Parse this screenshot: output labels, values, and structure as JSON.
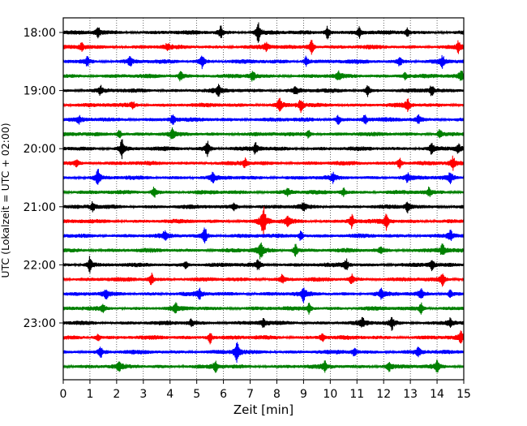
{
  "chart_data": {
    "type": "line",
    "title": "",
    "xlabel": "Zeit  [min]",
    "ylabel": "UTC (Lokalzeit = UTC + 02:00)",
    "xlim": [
      0,
      15
    ],
    "x_ticks": [
      "0",
      "1",
      "2",
      "3",
      "4",
      "5",
      "6",
      "7",
      "8",
      "9",
      "10",
      "11",
      "12",
      "13",
      "14",
      "15"
    ],
    "y_ticks": [
      "18:00",
      "19:00",
      "20:00",
      "21:00",
      "22:00",
      "23:00"
    ],
    "grid": "vertical dotted",
    "trace_colors": [
      "#000000",
      "#ff0000",
      "#0000ff",
      "#008000"
    ],
    "traces": [
      {
        "start": "18:00",
        "events": [
          [
            1.3,
            0.5
          ],
          [
            5.9,
            0.6
          ],
          [
            7.3,
            0.9
          ],
          [
            9.9,
            0.6
          ],
          [
            11.1,
            0.5
          ],
          [
            12.9,
            0.4
          ]
        ]
      },
      {
        "start": "18:15",
        "events": [
          [
            0.7,
            0.4
          ],
          [
            3.9,
            0.3
          ],
          [
            7.6,
            0.4
          ],
          [
            9.3,
            0.8
          ],
          [
            14.8,
            0.5
          ]
        ]
      },
      {
        "start": "18:30",
        "events": [
          [
            0.9,
            0.4
          ],
          [
            2.5,
            0.5
          ],
          [
            5.2,
            0.6
          ],
          [
            9.1,
            0.5
          ],
          [
            12.6,
            0.4
          ],
          [
            14.2,
            0.5
          ]
        ]
      },
      {
        "start": "18:45",
        "events": [
          [
            4.4,
            0.5
          ],
          [
            7.1,
            0.5
          ],
          [
            10.3,
            0.4
          ],
          [
            12.8,
            0.4
          ],
          [
            14.9,
            0.5
          ]
        ]
      },
      {
        "start": "19:00",
        "events": [
          [
            1.4,
            0.4
          ],
          [
            5.8,
            0.5
          ],
          [
            8.7,
            0.4
          ],
          [
            11.4,
            0.5
          ],
          [
            13.8,
            0.5
          ]
        ]
      },
      {
        "start": "19:15",
        "events": [
          [
            2.6,
            0.3
          ],
          [
            8.1,
            0.7
          ],
          [
            8.9,
            0.6
          ],
          [
            12.9,
            0.5
          ]
        ]
      },
      {
        "start": "19:30",
        "events": [
          [
            0.6,
            0.3
          ],
          [
            4.1,
            0.5
          ],
          [
            10.3,
            0.4
          ],
          [
            11.3,
            0.5
          ],
          [
            13.3,
            0.4
          ]
        ]
      },
      {
        "start": "19:45",
        "events": [
          [
            2.1,
            0.4
          ],
          [
            4.1,
            0.6
          ],
          [
            9.2,
            0.4
          ],
          [
            14.1,
            0.4
          ]
        ]
      },
      {
        "start": "20:00",
        "events": [
          [
            2.2,
            0.9
          ],
          [
            5.4,
            0.8
          ],
          [
            7.2,
            0.5
          ],
          [
            13.8,
            0.5
          ],
          [
            14.8,
            0.5
          ]
        ]
      },
      {
        "start": "20:15",
        "events": [
          [
            0.5,
            0.3
          ],
          [
            6.8,
            0.4
          ],
          [
            12.6,
            0.6
          ],
          [
            14.6,
            0.6
          ]
        ]
      },
      {
        "start": "20:30",
        "events": [
          [
            1.3,
            0.8
          ],
          [
            5.6,
            0.4
          ],
          [
            10.1,
            0.4
          ],
          [
            12.9,
            0.4
          ],
          [
            14.5,
            0.6
          ]
        ]
      },
      {
        "start": "20:45",
        "events": [
          [
            3.4,
            0.5
          ],
          [
            8.4,
            0.4
          ],
          [
            10.5,
            0.4
          ],
          [
            13.7,
            0.4
          ]
        ]
      },
      {
        "start": "21:00",
        "events": [
          [
            1.1,
            0.4
          ],
          [
            6.4,
            0.4
          ],
          [
            9.0,
            0.4
          ],
          [
            12.9,
            0.5
          ]
        ]
      },
      {
        "start": "21:15",
        "events": [
          [
            7.5,
            1.7
          ],
          [
            8.4,
            0.5
          ],
          [
            10.8,
            0.7
          ],
          [
            12.1,
            0.8
          ]
        ]
      },
      {
        "start": "21:30",
        "events": [
          [
            3.8,
            0.4
          ],
          [
            5.3,
            0.8
          ],
          [
            8.9,
            0.5
          ],
          [
            14.5,
            0.5
          ]
        ]
      },
      {
        "start": "21:45",
        "events": [
          [
            7.4,
            0.9
          ],
          [
            8.7,
            0.6
          ],
          [
            11.9,
            0.4
          ],
          [
            14.2,
            0.6
          ]
        ]
      },
      {
        "start": "22:00",
        "events": [
          [
            1.0,
            0.8
          ],
          [
            4.6,
            0.4
          ],
          [
            7.3,
            0.5
          ],
          [
            10.6,
            0.5
          ],
          [
            13.8,
            0.5
          ]
        ]
      },
      {
        "start": "22:15",
        "events": [
          [
            3.3,
            0.6
          ],
          [
            8.2,
            0.4
          ],
          [
            10.8,
            0.5
          ],
          [
            14.2,
            0.6
          ]
        ]
      },
      {
        "start": "22:30",
        "events": [
          [
            1.6,
            0.4
          ],
          [
            5.1,
            0.5
          ],
          [
            9.0,
            0.7
          ],
          [
            11.9,
            0.5
          ],
          [
            13.4,
            0.6
          ],
          [
            14.5,
            0.5
          ]
        ]
      },
      {
        "start": "22:45",
        "events": [
          [
            1.5,
            0.3
          ],
          [
            4.2,
            0.5
          ],
          [
            9.2,
            0.5
          ],
          [
            13.4,
            0.5
          ]
        ]
      },
      {
        "start": "23:00",
        "events": [
          [
            4.8,
            0.4
          ],
          [
            7.5,
            0.4
          ],
          [
            11.2,
            0.4
          ],
          [
            12.3,
            0.7
          ],
          [
            14.5,
            0.5
          ]
        ]
      },
      {
        "start": "23:15",
        "events": [
          [
            1.3,
            0.4
          ],
          [
            5.5,
            0.6
          ],
          [
            9.7,
            0.4
          ],
          [
            14.9,
            0.5
          ]
        ]
      },
      {
        "start": "23:30",
        "events": [
          [
            1.4,
            0.5
          ],
          [
            6.5,
            1.0
          ],
          [
            10.9,
            0.4
          ],
          [
            13.3,
            0.4
          ]
        ]
      },
      {
        "start": "23:45",
        "events": [
          [
            2.1,
            0.4
          ],
          [
            5.7,
            0.5
          ],
          [
            9.8,
            0.4
          ],
          [
            12.2,
            0.5
          ],
          [
            14.0,
            0.5
          ]
        ]
      }
    ]
  }
}
